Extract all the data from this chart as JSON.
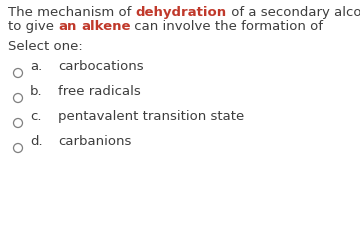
{
  "bg_color": "#ffffff",
  "question_color": "#3d3d3d",
  "bold_color": "#c0392b",
  "select_label": "Select one:",
  "options": [
    {
      "letter": "a.",
      "text": "carbocations"
    },
    {
      "letter": "b.",
      "text": "free radicals"
    },
    {
      "letter": "c.",
      "text": "pentavalent transition state"
    },
    {
      "letter": "d.",
      "text": "carbanions"
    }
  ],
  "option_color": "#3d3d3d",
  "circle_edgecolor": "#7f7f7f",
  "font_size": 9.5,
  "select_font_size": 9.5,
  "figwidth": 3.6,
  "figheight": 2.35,
  "dpi": 100
}
